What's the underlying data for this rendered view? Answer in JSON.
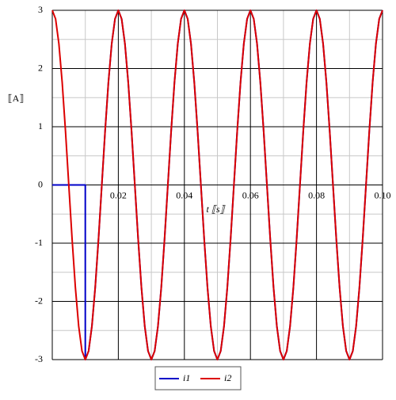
{
  "chart_data": {
    "type": "line",
    "xlabel": "t ⟦s⟧",
    "ylabel": "⟦A⟧",
    "xlim": [
      0,
      0.1
    ],
    "ylim": [
      -3,
      3
    ],
    "xticks": [
      0.02,
      0.04,
      0.06,
      0.08,
      {
        "value": 0.1,
        "label": "0.10"
      }
    ],
    "yticks": [
      -3,
      -2,
      -1,
      0,
      1,
      2,
      3
    ],
    "grid": true,
    "series": [
      {
        "name": "i1",
        "color": "#0000c8",
        "x": [
          0,
          0.01,
          0.01,
          0.011,
          0.012,
          0.013,
          0.014,
          0.015,
          0.016,
          0.017,
          0.018,
          0.019,
          0.02,
          0.021,
          0.022,
          0.023,
          0.024,
          0.025,
          0.026,
          0.027,
          0.028,
          0.029,
          0.03,
          0.031,
          0.032,
          0.033,
          0.034,
          0.035,
          0.036,
          0.037,
          0.038,
          0.039,
          0.04,
          0.041,
          0.042,
          0.043,
          0.044,
          0.045,
          0.046,
          0.047,
          0.048,
          0.049,
          0.05,
          0.051,
          0.052,
          0.053,
          0.054,
          0.055,
          0.056,
          0.057,
          0.058,
          0.059,
          0.06,
          0.061,
          0.062,
          0.063,
          0.064,
          0.065,
          0.066,
          0.067,
          0.068,
          0.069,
          0.07,
          0.071,
          0.072,
          0.073,
          0.074,
          0.075,
          0.076,
          0.077,
          0.078,
          0.079,
          0.08,
          0.081,
          0.082,
          0.083,
          0.084,
          0.085,
          0.086,
          0.087,
          0.088,
          0.089,
          0.09,
          0.091,
          0.092,
          0.093,
          0.094,
          0.095,
          0.096,
          0.097,
          0.098,
          0.099,
          0.1
        ],
        "values": [
          0,
          0,
          -3,
          -2.853,
          -2.427,
          -1.763,
          -0.927,
          0,
          0.927,
          1.763,
          2.427,
          2.853,
          3,
          2.853,
          2.427,
          1.763,
          0.927,
          0,
          -0.927,
          -1.763,
          -2.427,
          -2.853,
          -3,
          -2.853,
          -2.427,
          -1.763,
          -0.927,
          0,
          0.927,
          1.763,
          2.427,
          2.853,
          3,
          2.853,
          2.427,
          1.763,
          0.927,
          0,
          -0.927,
          -1.763,
          -2.427,
          -2.853,
          -3,
          -2.853,
          -2.427,
          -1.763,
          -0.927,
          0,
          0.927,
          1.763,
          2.427,
          2.853,
          3,
          2.853,
          2.427,
          1.763,
          0.927,
          0,
          -0.927,
          -1.763,
          -2.427,
          -2.853,
          -3,
          -2.853,
          -2.427,
          -1.763,
          -0.927,
          0,
          0.927,
          1.763,
          2.427,
          2.853,
          3,
          2.853,
          2.427,
          1.763,
          0.927,
          0,
          -0.927,
          -1.763,
          -2.427,
          -2.853,
          -3,
          -2.853,
          -2.427,
          -1.763,
          -0.927,
          0,
          0.927,
          1.763,
          2.427,
          2.853,
          3
        ]
      },
      {
        "name": "i2",
        "color": "#dc0000",
        "x": [
          0,
          0.001,
          0.002,
          0.003,
          0.004,
          0.005,
          0.006,
          0.007,
          0.008,
          0.009,
          0.01,
          0.011,
          0.012,
          0.013,
          0.014,
          0.015,
          0.016,
          0.017,
          0.018,
          0.019,
          0.02,
          0.021,
          0.022,
          0.023,
          0.024,
          0.025,
          0.026,
          0.027,
          0.028,
          0.029,
          0.03,
          0.031,
          0.032,
          0.033,
          0.034,
          0.035,
          0.036,
          0.037,
          0.038,
          0.039,
          0.04,
          0.041,
          0.042,
          0.043,
          0.044,
          0.045,
          0.046,
          0.047,
          0.048,
          0.049,
          0.05,
          0.051,
          0.052,
          0.053,
          0.054,
          0.055,
          0.056,
          0.057,
          0.058,
          0.059,
          0.06,
          0.061,
          0.062,
          0.063,
          0.064,
          0.065,
          0.066,
          0.067,
          0.068,
          0.069,
          0.07,
          0.071,
          0.072,
          0.073,
          0.074,
          0.075,
          0.076,
          0.077,
          0.078,
          0.079,
          0.08,
          0.081,
          0.082,
          0.083,
          0.084,
          0.085,
          0.086,
          0.087,
          0.088,
          0.089,
          0.09,
          0.091,
          0.092,
          0.093,
          0.094,
          0.095,
          0.096,
          0.097,
          0.098,
          0.099,
          0.1
        ],
        "values": [
          3,
          2.853,
          2.427,
          1.763,
          0.927,
          0,
          -0.927,
          -1.763,
          -2.427,
          -2.853,
          -3,
          -2.853,
          -2.427,
          -1.763,
          -0.927,
          0,
          0.927,
          1.763,
          2.427,
          2.853,
          3,
          2.853,
          2.427,
          1.763,
          0.927,
          0,
          -0.927,
          -1.763,
          -2.427,
          -2.853,
          -3,
          -2.853,
          -2.427,
          -1.763,
          -0.927,
          0,
          0.927,
          1.763,
          2.427,
          2.853,
          3,
          2.853,
          2.427,
          1.763,
          0.927,
          0,
          -0.927,
          -1.763,
          -2.427,
          -2.853,
          -3,
          -2.853,
          -2.427,
          -1.763,
          -0.927,
          0,
          0.927,
          1.763,
          2.427,
          2.853,
          3,
          2.853,
          2.427,
          1.763,
          0.927,
          0,
          -0.927,
          -1.763,
          -2.427,
          -2.853,
          -3,
          -2.853,
          -2.427,
          -1.763,
          -0.927,
          0,
          0.927,
          1.763,
          2.427,
          2.853,
          3,
          2.853,
          2.427,
          1.763,
          0.927,
          0,
          -0.927,
          -1.763,
          -2.427,
          -2.853,
          -3,
          -2.853,
          -2.427,
          -1.763,
          -0.927,
          0,
          0.927,
          1.763,
          2.427,
          2.853,
          3
        ]
      }
    ]
  }
}
